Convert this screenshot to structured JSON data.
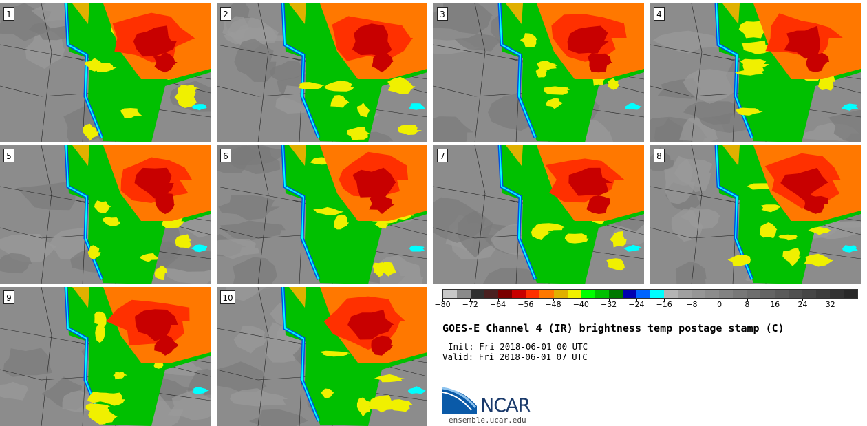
{
  "panels": [
    {
      "label": "1"
    },
    {
      "label": "2"
    },
    {
      "label": "3"
    },
    {
      "label": "4"
    },
    {
      "label": "5"
    },
    {
      "label": "6"
    },
    {
      "label": "7"
    },
    {
      "label": "8"
    },
    {
      "label": "9"
    },
    {
      "label": "10"
    }
  ],
  "colorbar": {
    "colors": [
      "#c8c8c8",
      "#8a8a8a",
      "#303030",
      "#4a2020",
      "#7a0000",
      "#c80000",
      "#ff3000",
      "#ff7800",
      "#e0b000",
      "#f0f000",
      "#00ff00",
      "#00c000",
      "#007800",
      "#0000b0",
      "#0064ff",
      "#00ffff",
      "#b4b4b4",
      "#a0a0a0",
      "#969696",
      "#8c8c8c",
      "#828282",
      "#787878",
      "#6e6e6e",
      "#646464",
      "#5a5a5a",
      "#505050",
      "#464646",
      "#3c3c3c",
      "#323232",
      "#282828"
    ],
    "tick_labels": [
      "−80",
      "−72",
      "−64",
      "−56",
      "−48",
      "−40",
      "−32",
      "−24",
      "−16",
      "−8",
      "0",
      "8",
      "16",
      "24",
      "32"
    ],
    "range": [
      -80,
      40
    ]
  },
  "title": "GOES-E Channel 4 (IR) brightness temp postage stamp (C)",
  "init": "Init: Fri 2018-06-01 00 UTC",
  "valid": "Valid: Fri 2018-06-01 07 UTC",
  "logo": {
    "text": "NCAR",
    "icon": "ncar-logo-icon",
    "color": "#1a3a6b"
  },
  "url": "ensemble.ucar.edu"
}
